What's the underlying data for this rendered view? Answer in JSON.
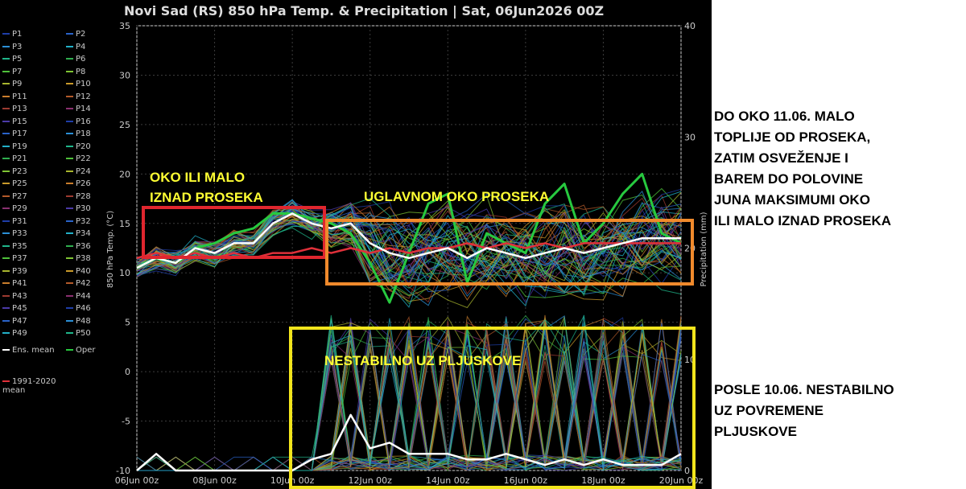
{
  "chart_data": {
    "type": "line",
    "title": "Novi Sad  (RS)  850 hPa Temp. & Precipitation | Sat, 06Jun2026 00Z",
    "ylabel": "850 hPa Temp. (°C)",
    "y2label": "Precipitation (mm)",
    "ylim": [
      -10,
      35
    ],
    "y2lim": [
      0,
      40
    ],
    "yticks": [
      "35",
      "30",
      "25",
      "20",
      "15",
      "10",
      "5",
      "0",
      "-5",
      "-10"
    ],
    "y2ticks": [
      "40",
      "30",
      "20",
      "10",
      "0"
    ],
    "xticks": [
      "06Jun 00z",
      "08Jun 00z",
      "10Jun 00z",
      "12Jun 00z",
      "14Jun 00z",
      "16Jun 00z",
      "18Jun 00z",
      "20Jun 00z"
    ],
    "xrange_days": [
      0,
      14
    ],
    "grid": true,
    "legend": {
      "position": "left",
      "members": [
        "P1",
        "P2",
        "P3",
        "P4",
        "P5",
        "P6",
        "P7",
        "P8",
        "P9",
        "P10",
        "P11",
        "P12",
        "P13",
        "P14",
        "P15",
        "P16",
        "P17",
        "P18",
        "P19",
        "P20",
        "P21",
        "P22",
        "P23",
        "P24",
        "P25",
        "P26",
        "P27",
        "P28",
        "P29",
        "P30",
        "P31",
        "P32",
        "P33",
        "P34",
        "P35",
        "P36",
        "P37",
        "P38",
        "P39",
        "P40",
        "P41",
        "P42",
        "P43",
        "P44",
        "P45",
        "P46",
        "P47",
        "P48",
        "P49",
        "P50"
      ],
      "ens_mean": "Ens. mean",
      "oper": "Oper",
      "clim": "1991-2020\nmean"
    },
    "series_meta": {
      "members_colors": [
        "#1f3ea8",
        "#2a63c9",
        "#2b8fd6",
        "#22b0c8",
        "#1fb58a",
        "#2fae4f",
        "#4fc13a",
        "#7fc534",
        "#a8b52e",
        "#c99a2a",
        "#c97d2c",
        "#b35a2a",
        "#9c3a30",
        "#8a3070",
        "#4b3aa8"
      ],
      "ens_mean_color": "#ffffff",
      "oper_color": "#27c93f",
      "clim_color": "#e0303a"
    },
    "ens_mean_temp": {
      "x_days": [
        0,
        0.5,
        1,
        1.5,
        2,
        2.5,
        3,
        3.5,
        4,
        4.5,
        5,
        5.5,
        6,
        6.5,
        7,
        7.5,
        8,
        8.5,
        9,
        9.5,
        10,
        10.5,
        11,
        11.5,
        12,
        12.5,
        13,
        13.5,
        14
      ],
      "y": [
        10.5,
        11.5,
        11,
        12.5,
        12,
        13,
        13,
        15,
        16,
        15,
        14.5,
        15,
        13,
        12,
        11.5,
        12,
        12.5,
        11.5,
        12.5,
        12,
        11.5,
        12,
        12.5,
        12,
        12.5,
        13,
        13.5,
        13.5,
        13.5
      ]
    },
    "oper_temp": {
      "x_days": [
        0,
        0.5,
        1,
        1.5,
        2,
        2.5,
        3,
        3.5,
        4,
        4.5,
        5,
        5.5,
        6,
        6.5,
        7,
        7.5,
        8,
        8.5,
        9,
        9.5,
        10,
        10.5,
        11,
        11.5,
        12,
        12.5,
        13,
        13.5,
        14
      ],
      "y": [
        10.5,
        11.5,
        11,
        12.5,
        13,
        14,
        14.5,
        16,
        16,
        15.5,
        15,
        14,
        11,
        7,
        12,
        17,
        18,
        9,
        14,
        13,
        12,
        17,
        19,
        13,
        15,
        18,
        20,
        14,
        13
      ]
    },
    "clim_temp": {
      "x_days": [
        0,
        0.5,
        1,
        1.5,
        2,
        2.5,
        3,
        3.5,
        4,
        4.5,
        5,
        5.5,
        6,
        6.5,
        7,
        7.5,
        8,
        8.5,
        9,
        9.5,
        10,
        10.5,
        11,
        11.5,
        12,
        12.5,
        13,
        13.5,
        14
      ],
      "y": [
        11.5,
        12,
        11.5,
        12,
        11.5,
        12,
        11.5,
        12,
        12,
        12.5,
        12,
        12.5,
        12,
        12.5,
        12,
        12.5,
        12.5,
        13,
        12.5,
        13,
        12.5,
        13,
        12.5,
        13,
        13,
        13,
        13,
        13,
        13
      ]
    },
    "ens_mean_precip": {
      "x_days": [
        0,
        0.5,
        1,
        1.5,
        2,
        2.5,
        3,
        3.5,
        4,
        4.5,
        5,
        5.5,
        6,
        6.5,
        7,
        7.5,
        8,
        8.5,
        9,
        9.5,
        10,
        10.5,
        11,
        11.5,
        12,
        12.5,
        13,
        13.5,
        14
      ],
      "y": [
        0,
        1.5,
        0,
        0,
        0,
        0,
        0,
        0,
        0,
        1,
        1.5,
        5,
        2,
        2.5,
        1.5,
        1.5,
        1.5,
        1,
        1,
        1.5,
        1,
        0.5,
        1,
        0.5,
        1,
        0.5,
        0.5,
        0.5,
        1.5
      ]
    },
    "annotations": [
      {
        "color": "#e0262e",
        "text": "OKO ILI MALO\nIZNAD PROSEKA",
        "text_color": "#ffff33"
      },
      {
        "color": "#f08a2c",
        "text": "UGLAVNOM OKO PROSEKA",
        "text_color": "#ffff33"
      },
      {
        "color": "#f2e51c",
        "text": "NESTABILNO UZ PLJUSKOVE",
        "text_color": "#ffff33"
      }
    ]
  },
  "side_notes": {
    "note1": "DO OKO 11.06. MALO\nTOPLIJE OD PROSEKA,\nZATIM OSVEŽENJE I\nBAREM DO POLOVINE\nJUNA MAKSIMUMI OKO\nILI MALO IZNAD PROSEKA",
    "note2": "POSLE 10.06. NESTABILNO\nUZ POVREMENE\nPLJUSKOVE"
  }
}
